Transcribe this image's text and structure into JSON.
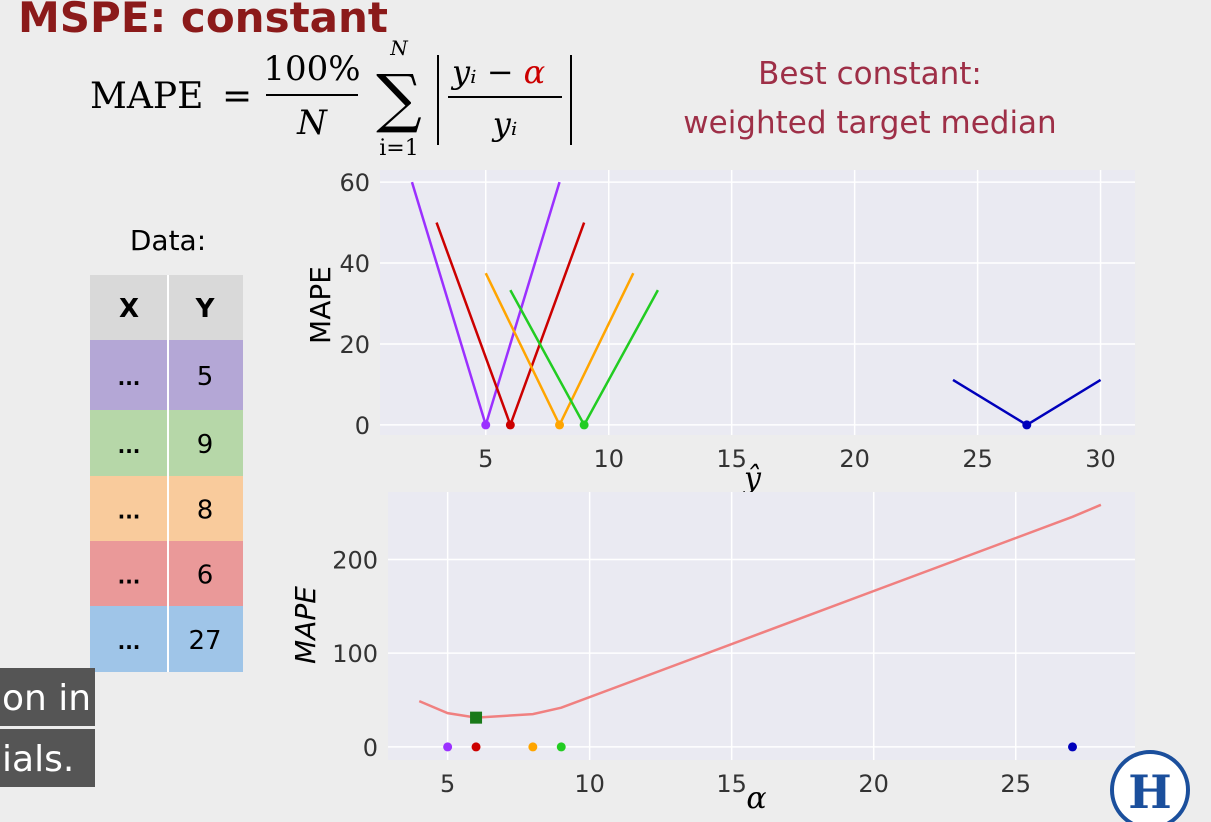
{
  "title": "MSPE: constant",
  "formula": {
    "lhs": "MAPE",
    "equals": "=",
    "numerator": "100%",
    "denominator": "N",
    "sum_upper": "N",
    "sum_lower": "i=1",
    "abs_numerator": [
      "yᵢ",
      "−",
      "α"
    ],
    "abs_denominator": "yᵢ"
  },
  "note": [
    "Best constant:",
    "weighted target median"
  ],
  "table": {
    "caption": "Data:",
    "header": [
      "X",
      "Y"
    ],
    "rows": [
      [
        "...",
        5
      ],
      [
        "...",
        9
      ],
      [
        "...",
        8
      ],
      [
        "...",
        6
      ],
      [
        "...",
        27
      ]
    ],
    "row_colors": [
      "#b4a7d6",
      "#b6d7a8",
      "#f9cb9c",
      "#ea9999",
      "#9fc5e8"
    ]
  },
  "captions": [
    "on in",
    "ials."
  ],
  "chart_data": [
    {
      "type": "line",
      "xlabel": "ŷ",
      "ylabel": "MAPE",
      "xlim": [
        0.7,
        31.4
      ],
      "ylim": [
        -2.5,
        63
      ],
      "xticks": [
        5,
        10,
        15,
        20,
        25,
        30
      ],
      "yticks": [
        0,
        20,
        40,
        60
      ],
      "grid": true,
      "series": [
        {
          "color": "#9b30ff",
          "x": [
            2,
            5,
            8
          ],
          "values": [
            60,
            0,
            60
          ]
        },
        {
          "color": "#cc0000",
          "x": [
            3,
            6,
            9
          ],
          "values": [
            50,
            0,
            50
          ]
        },
        {
          "color": "#ffa500",
          "x": [
            5,
            8,
            11
          ],
          "values": [
            37.5,
            0,
            37.5
          ]
        },
        {
          "color": "#22cc22",
          "x": [
            6,
            9,
            12
          ],
          "values": [
            33.3,
            0,
            33.3
          ]
        },
        {
          "color": "#0000bb",
          "x": [
            24,
            27,
            30
          ],
          "values": [
            11.1,
            0,
            11.1
          ]
        }
      ],
      "points": {
        "x": [
          5,
          6,
          8,
          9,
          27
        ],
        "values": [
          0,
          0,
          0,
          0,
          0
        ],
        "colors": [
          "#9b30ff",
          "#cc0000",
          "#ffa500",
          "#22cc22",
          "#0000bb"
        ]
      }
    },
    {
      "type": "line",
      "xlabel": "α",
      "ylabel": "MAPE",
      "xlim": [
        2.9,
        29.2
      ],
      "ylim": [
        -14,
        272
      ],
      "xticks": [
        5,
        10,
        15,
        20,
        25
      ],
      "yticks": [
        0,
        100,
        200
      ],
      "grid": true,
      "series": [
        {
          "color": "#f08080",
          "x": [
            4,
            5,
            6,
            8,
            9,
            27,
            28
          ],
          "values": [
            48.8,
            36,
            31.2,
            35,
            41.8,
            245.5,
            258.3
          ]
        }
      ],
      "points": {
        "x": [
          5,
          6,
          8,
          9,
          27
        ],
        "values": [
          0,
          0,
          0,
          0,
          0
        ],
        "colors": [
          "#9b30ff",
          "#cc0000",
          "#ffa500",
          "#22cc22",
          "#0000bb"
        ]
      },
      "optimum": {
        "x": 6,
        "value": 31.2,
        "color": "#1a7a1a"
      }
    }
  ]
}
